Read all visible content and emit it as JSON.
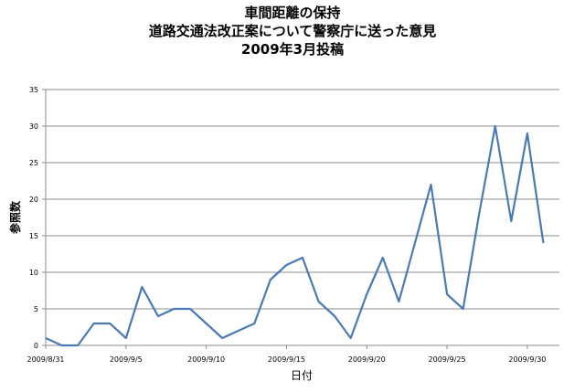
{
  "chart_data": {
    "type": "line",
    "title_lines": [
      "車間距離の保持",
      "道路交通法改正案について警察庁に送った意見",
      "2009年3月投稿"
    ],
    "xlabel": "日付",
    "ylabel": "参照数",
    "x_tick_labels": [
      "2009/8/31",
      "2009/9/5",
      "2009/9/10",
      "2009/9/15",
      "2009/9/20",
      "2009/9/25",
      "2009/9/30"
    ],
    "y_ticks": [
      0,
      5,
      10,
      15,
      20,
      25,
      30,
      35
    ],
    "ylim": [
      0,
      35
    ],
    "grid": true,
    "legend": "none",
    "line_color": "#4a7ab6",
    "series": [
      {
        "x": [
          "2009/8/31",
          "2009/9/1",
          "2009/9/2",
          "2009/9/3",
          "2009/9/4",
          "2009/9/5",
          "2009/9/6",
          "2009/9/7",
          "2009/9/8",
          "2009/9/9",
          "2009/9/10",
          "2009/9/11",
          "2009/9/12",
          "2009/9/13",
          "2009/9/14",
          "2009/9/15",
          "2009/9/16",
          "2009/9/17",
          "2009/9/18",
          "2009/9/19",
          "2009/9/20",
          "2009/9/21",
          "2009/9/22",
          "2009/9/23",
          "2009/9/24",
          "2009/9/25",
          "2009/9/26",
          "2009/9/27",
          "2009/9/28",
          "2009/9/29",
          "2009/9/30",
          "2009/10/1"
        ],
        "values": [
          1,
          0,
          0,
          3,
          3,
          1,
          8,
          4,
          5,
          5,
          3,
          1,
          2,
          3,
          9,
          11,
          12,
          6,
          4,
          1,
          7,
          12,
          6,
          14,
          22,
          7,
          5,
          18,
          30,
          17,
          29,
          14
        ]
      }
    ]
  }
}
